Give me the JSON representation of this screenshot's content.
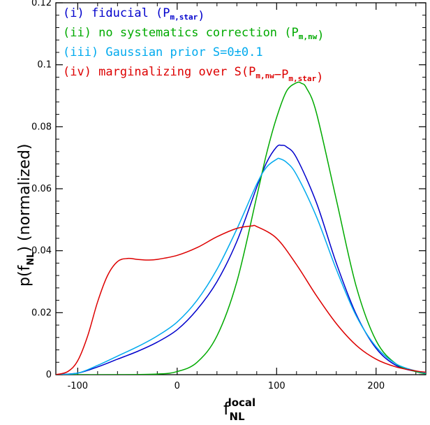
{
  "chart_data": {
    "type": "line",
    "title": "",
    "xlabel_main": "f",
    "xlabel_sub": "NL",
    "xlabel_sup": "local",
    "ylabel_main": "p(f",
    "ylabel_sub": "NL",
    "ylabel_tail": ")  (normalized)",
    "xlim": [
      -122,
      250
    ],
    "ylim": [
      0,
      0.12
    ],
    "xticks": [
      -100,
      0,
      100,
      200
    ],
    "xtick_labels": [
      "-100",
      "0",
      "100",
      "200"
    ],
    "yticks": [
      0,
      0.02,
      0.04,
      0.06,
      0.08,
      0.1,
      0.12
    ],
    "ytick_labels": [
      "0",
      "0.02",
      "0.04",
      "0.06",
      "0.08",
      "0.1",
      "0.12"
    ],
    "legend_position": "top-left",
    "series": [
      {
        "name": "(i) fiducial (P_m,star)",
        "legend": {
          "prefix": "(i) fiducial (P",
          "sub": "m,star",
          "suffix": ")"
        },
        "color": "#0000cc",
        "x": [
          -122,
          -100,
          -80,
          -60,
          -40,
          -20,
          0,
          20,
          40,
          60,
          80,
          90,
          100,
          105,
          110,
          120,
          140,
          160,
          180,
          200,
          220,
          240,
          250
        ],
        "y": [
          0,
          0.0005,
          0.0025,
          0.005,
          0.0075,
          0.0105,
          0.0145,
          0.021,
          0.03,
          0.043,
          0.0605,
          0.0685,
          0.0735,
          0.074,
          0.0735,
          0.07,
          0.0555,
          0.036,
          0.0195,
          0.0085,
          0.003,
          0.001,
          0.0003
        ]
      },
      {
        "name": "(ii) no systematics correction (P_m,nw)",
        "legend": {
          "prefix": "(ii) no systematics correction (P",
          "sub": "m,nw",
          "suffix": ")"
        },
        "color": "#00aa00",
        "x": [
          -122,
          -60,
          -20,
          0,
          20,
          40,
          60,
          80,
          90,
          100,
          110,
          120,
          125,
          130,
          140,
          160,
          180,
          200,
          220,
          240,
          250
        ],
        "y": [
          0,
          0,
          0.0002,
          0.001,
          0.004,
          0.0125,
          0.03,
          0.0575,
          0.0715,
          0.083,
          0.0915,
          0.0942,
          0.094,
          0.0925,
          0.0845,
          0.0565,
          0.0285,
          0.011,
          0.0035,
          0.001,
          0.0003
        ]
      },
      {
        "name": "(iii) Gaussian prior S=0±0.1",
        "legend": {
          "prefix": "(iii) Gaussian prior S=0±0.1",
          "sub": "",
          "suffix": ""
        },
        "color": "#00aaee",
        "x": [
          -122,
          -100,
          -80,
          -60,
          -40,
          -20,
          0,
          20,
          40,
          60,
          80,
          90,
          100,
          103,
          110,
          120,
          140,
          160,
          180,
          200,
          220,
          240,
          250
        ],
        "y": [
          0,
          0.0005,
          0.003,
          0.006,
          0.009,
          0.0125,
          0.017,
          0.024,
          0.034,
          0.047,
          0.0615,
          0.067,
          0.0695,
          0.0697,
          0.0685,
          0.0645,
          0.051,
          0.034,
          0.019,
          0.009,
          0.0035,
          0.0012,
          0.0005
        ]
      },
      {
        "name": "(iv) marginalizing over S(P_m,nw - P_m,star)",
        "legend": {
          "prefix": "(iv) marginalizing over S(P",
          "sub": "m,nw",
          "mid": "−P",
          "sub2": "m,star",
          "suffix": ")"
        },
        "color": "#dd0000",
        "x": [
          -122,
          -110,
          -100,
          -90,
          -80,
          -70,
          -60,
          -50,
          -40,
          -30,
          -20,
          0,
          20,
          40,
          60,
          75,
          80,
          100,
          120,
          140,
          160,
          180,
          200,
          220,
          240,
          250
        ],
        "y": [
          0,
          0.001,
          0.0045,
          0.0125,
          0.0235,
          0.032,
          0.0365,
          0.0375,
          0.0372,
          0.037,
          0.0372,
          0.0385,
          0.041,
          0.0445,
          0.0472,
          0.048,
          0.0478,
          0.044,
          0.0355,
          0.0255,
          0.0165,
          0.0095,
          0.005,
          0.0025,
          0.0012,
          0.0008
        ]
      }
    ]
  }
}
